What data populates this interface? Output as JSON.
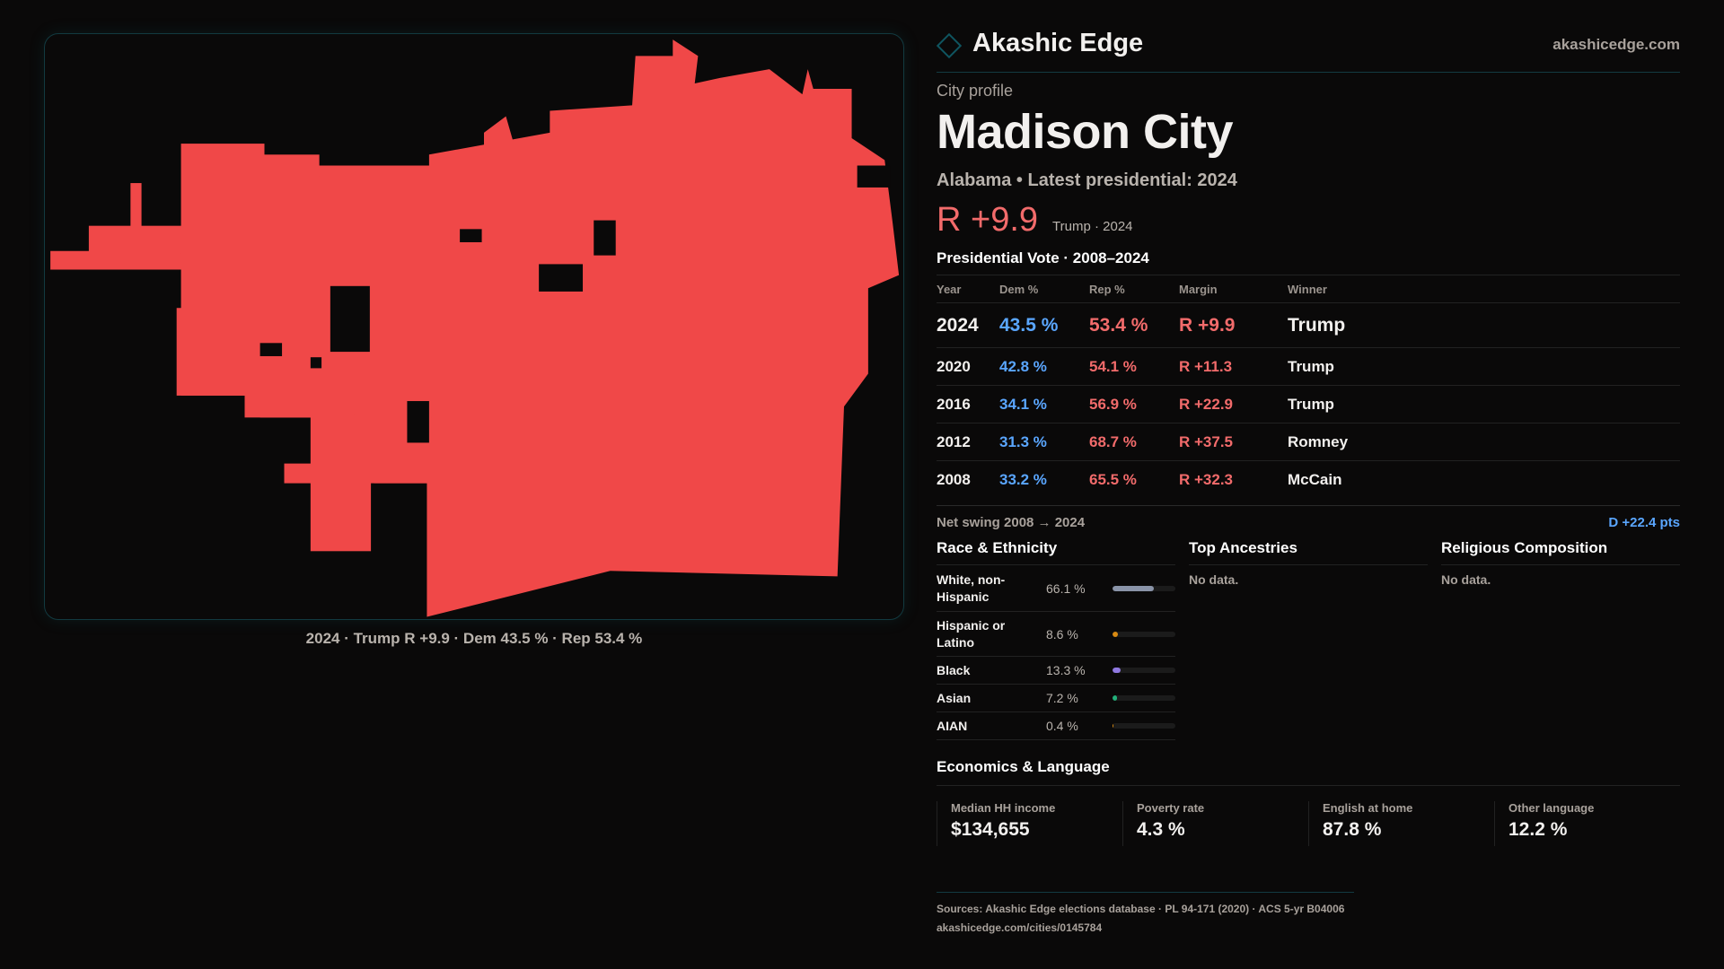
{
  "map": {
    "caption": "2024 · Trump R +9.9 · Dem 43.5 % · Rep 53.4 %",
    "fill_color": "#f04848"
  },
  "header": {
    "brand": "Akashic Edge",
    "site": "akashicedge.com"
  },
  "profile": {
    "kicker": "City profile",
    "title": "Madison City",
    "subtitle": "Alabama • Latest presidential: 2024",
    "margin": "R +9.9",
    "winner_note": "Trump · 2024"
  },
  "votes": {
    "heading": "Presidential Vote · 2008–2024",
    "columns": [
      "Year",
      "Dem %",
      "Rep %",
      "Margin",
      "Winner"
    ],
    "rows": [
      {
        "year": "2024",
        "dem": "43.5 %",
        "rep": "53.4 %",
        "margin": "R +9.9",
        "winner": "Trump"
      },
      {
        "year": "2020",
        "dem": "42.8 %",
        "rep": "54.1 %",
        "margin": "R +11.3",
        "winner": "Trump"
      },
      {
        "year": "2016",
        "dem": "34.1 %",
        "rep": "56.9 %",
        "margin": "R +22.9",
        "winner": "Trump"
      },
      {
        "year": "2012",
        "dem": "31.3 %",
        "rep": "68.7 %",
        "margin": "R +37.5",
        "winner": "Romney"
      },
      {
        "year": "2008",
        "dem": "33.2 %",
        "rep": "65.5 %",
        "margin": "R +32.3",
        "winner": "McCain"
      }
    ]
  },
  "swing": {
    "label": "Net swing 2008 → 2024",
    "value": "D +22.4 pts"
  },
  "race": {
    "heading": "Race & Ethnicity",
    "items": [
      {
        "label": "White, non-Hispanic",
        "pct": "66.1 %",
        "value": 66.1,
        "color": "#8a94a8"
      },
      {
        "label": "Hispanic or Latino",
        "pct": "8.6 %",
        "value": 8.6,
        "color": "#d98a12"
      },
      {
        "label": "Black",
        "pct": "13.3 %",
        "value": 13.3,
        "color": "#8f78e0"
      },
      {
        "label": "Asian",
        "pct": "7.2 %",
        "value": 7.2,
        "color": "#22b07a"
      },
      {
        "label": "AIAN",
        "pct": "0.4 %",
        "value": 0.4,
        "color": "#d98a12"
      }
    ]
  },
  "ancestries": {
    "heading": "Top Ancestries",
    "empty": "No data."
  },
  "religion": {
    "heading": "Religious Composition",
    "empty": "No data."
  },
  "economics": {
    "heading": "Economics & Language",
    "cards": [
      {
        "label": "Median HH income",
        "value": "$134,655"
      },
      {
        "label": "Poverty rate",
        "value": "4.3 %"
      },
      {
        "label": "English at home",
        "value": "87.8 %"
      },
      {
        "label": "Other language",
        "value": "12.2 %"
      }
    ]
  },
  "footer": {
    "sources": "Sources: Akashic Edge elections database · PL 94-171 (2020) · ACS 5-yr B04006",
    "url": "akashicedge.com/cities/0145784"
  }
}
